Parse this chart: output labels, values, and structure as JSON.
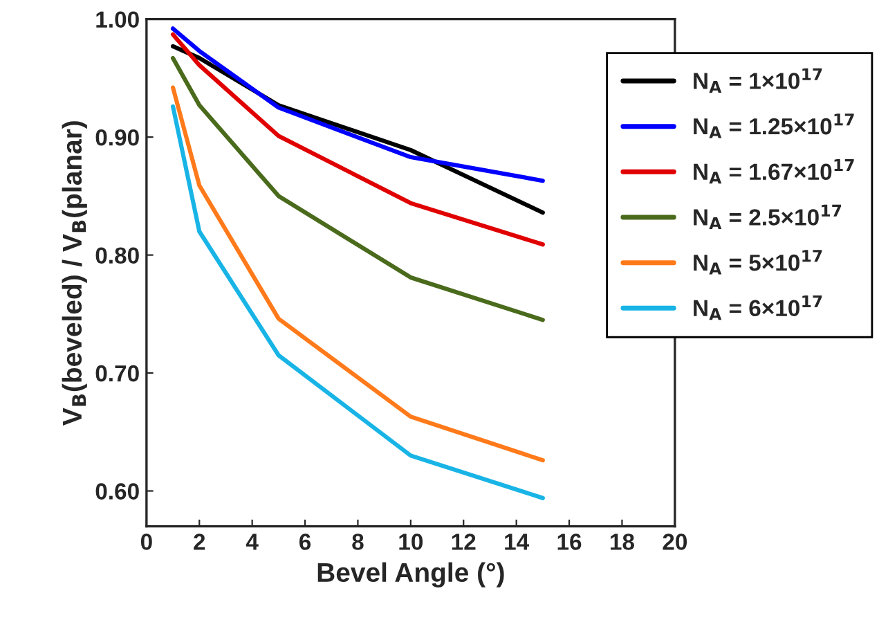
{
  "chart_data": {
    "type": "line",
    "xlabel": "Bevel Angle (°)",
    "ylabel": "V$_{B}$(beveled) / V$_{B}$(planar)",
    "x": [
      1,
      2,
      5,
      10,
      15
    ],
    "xlim": [
      0,
      20
    ],
    "xticks": [
      0,
      2,
      4,
      6,
      8,
      10,
      12,
      14,
      16,
      18,
      20
    ],
    "ylim": [
      0.57,
      1.0
    ],
    "yticks": [
      {
        "value": 0.6,
        "label": "0.60"
      },
      {
        "value": 0.7,
        "label": "0.70"
      },
      {
        "value": 0.8,
        "label": "0.80"
      },
      {
        "value": 0.9,
        "label": "0.90"
      },
      {
        "value": 1.0,
        "label": "1.00"
      }
    ],
    "grid": false,
    "legend": "top right",
    "marker": "none",
    "line_style": "solid",
    "series": [
      {
        "name": "N$_{A}$ = 1×10$^{17}$",
        "color": "#000000",
        "values": [
          0.977,
          0.967,
          0.927,
          0.889,
          0.836
        ]
      },
      {
        "name": "N$_{A}$ = 1.25×10$^{17}$",
        "color": "#0000ff",
        "values": [
          0.992,
          0.973,
          0.925,
          0.883,
          0.863
        ]
      },
      {
        "name": "N$_{A}$ = 1.67×10$^{17}$",
        "color": "#e00000",
        "values": [
          0.987,
          0.961,
          0.901,
          0.844,
          0.809
        ]
      },
      {
        "name": "N$_{A}$ = 2.5×10$^{17}$",
        "color": "#4a6a1c",
        "values": [
          0.967,
          0.927,
          0.85,
          0.781,
          0.745
        ]
      },
      {
        "name": "N$_{A}$ = 5×10$^{17}$",
        "color": "#ff7a1a",
        "values": [
          0.942,
          0.859,
          0.746,
          0.663,
          0.626
        ]
      },
      {
        "name": "N$_{A}$ = 6×10$^{17}$",
        "color": "#19b4e6",
        "values": [
          0.926,
          0.82,
          0.715,
          0.63,
          0.594
        ]
      }
    ]
  }
}
